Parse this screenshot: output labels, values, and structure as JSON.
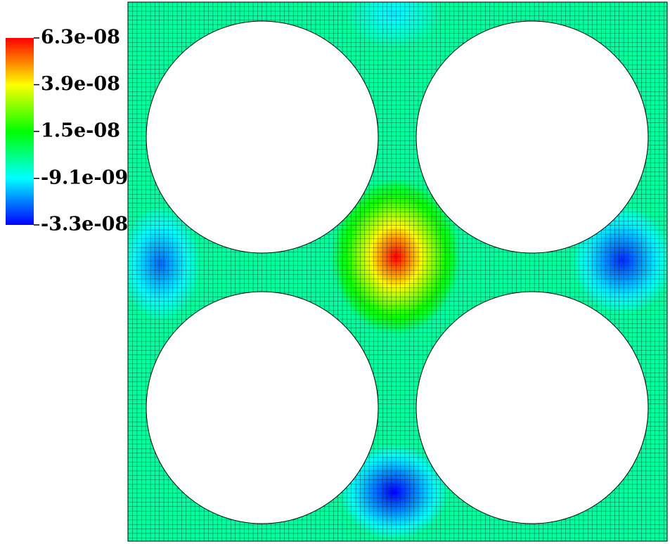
{
  "chart_data": {
    "type": "field",
    "colormap": [
      "#0000ff",
      "#00ffff",
      "#00ff00",
      "#ffff00",
      "#ff0000"
    ],
    "zlim": [
      -3.3e-08,
      6.3e-08
    ],
    "zticks": [
      {
        "value": -3.3e-08,
        "label": "-3.3e-08"
      },
      {
        "value": -9.1e-09,
        "label": "-9.1e-09"
      },
      {
        "value": 1.5e-08,
        "label": "1.5e-08"
      },
      {
        "value": 3.9e-08,
        "label": "3.9e-08"
      },
      {
        "value": 6.3e-08,
        "label": "6.3e-08"
      }
    ],
    "background_value": 0,
    "extrema": [
      6.3e-08,
      -2.9e-08,
      -3.3e-08,
      -2.3e-08,
      -1.1e-08
    ]
  }
}
